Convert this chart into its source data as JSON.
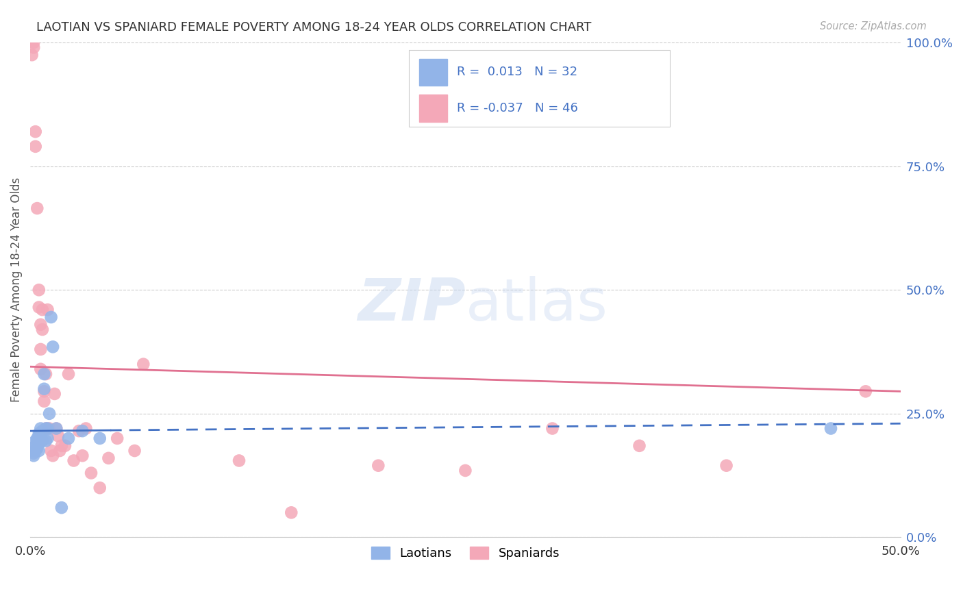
{
  "title": "LAOTIAN VS SPANIARD FEMALE POVERTY AMONG 18-24 YEAR OLDS CORRELATION CHART",
  "source": "Source: ZipAtlas.com",
  "ylabel": "Female Poverty Among 18-24 Year Olds",
  "ytick_labels": [
    "0.0%",
    "25.0%",
    "50.0%",
    "75.0%",
    "100.0%"
  ],
  "ytick_values": [
    0.0,
    0.25,
    0.5,
    0.75,
    1.0
  ],
  "xlim": [
    0.0,
    0.5
  ],
  "ylim": [
    0.0,
    1.0
  ],
  "laotian_R": 0.013,
  "laotian_N": 32,
  "spaniard_R": -0.037,
  "spaniard_N": 46,
  "legend_label_laotian": "Laotians",
  "legend_label_spaniard": "Spaniards",
  "laotian_color": "#92b4e8",
  "spaniard_color": "#f4a8b8",
  "laotian_line_color": "#4472c4",
  "spaniard_line_color": "#e07090",
  "background_color": "#ffffff",
  "laotian_x": [
    0.001,
    0.002,
    0.002,
    0.003,
    0.003,
    0.003,
    0.004,
    0.004,
    0.004,
    0.005,
    0.005,
    0.005,
    0.005,
    0.006,
    0.006,
    0.007,
    0.007,
    0.008,
    0.008,
    0.009,
    0.009,
    0.01,
    0.01,
    0.011,
    0.012,
    0.013,
    0.015,
    0.018,
    0.022,
    0.03,
    0.04,
    0.46
  ],
  "laotian_y": [
    0.175,
    0.17,
    0.165,
    0.195,
    0.185,
    0.175,
    0.2,
    0.195,
    0.18,
    0.21,
    0.205,
    0.19,
    0.175,
    0.22,
    0.2,
    0.215,
    0.195,
    0.33,
    0.3,
    0.22,
    0.195,
    0.22,
    0.2,
    0.25,
    0.445,
    0.385,
    0.22,
    0.06,
    0.2,
    0.215,
    0.2,
    0.22
  ],
  "spaniard_x": [
    0.001,
    0.002,
    0.002,
    0.003,
    0.003,
    0.004,
    0.005,
    0.005,
    0.006,
    0.006,
    0.006,
    0.007,
    0.007,
    0.008,
    0.008,
    0.009,
    0.009,
    0.01,
    0.011,
    0.012,
    0.013,
    0.014,
    0.015,
    0.016,
    0.017,
    0.018,
    0.02,
    0.022,
    0.025,
    0.028,
    0.03,
    0.032,
    0.035,
    0.04,
    0.045,
    0.05,
    0.06,
    0.065,
    0.12,
    0.15,
    0.2,
    0.25,
    0.3,
    0.35,
    0.4,
    0.48
  ],
  "spaniard_y": [
    0.975,
    1.0,
    0.99,
    0.82,
    0.79,
    0.665,
    0.5,
    0.465,
    0.43,
    0.38,
    0.34,
    0.46,
    0.42,
    0.295,
    0.275,
    0.33,
    0.22,
    0.46,
    0.22,
    0.175,
    0.165,
    0.29,
    0.22,
    0.205,
    0.175,
    0.185,
    0.185,
    0.33,
    0.155,
    0.215,
    0.165,
    0.22,
    0.13,
    0.1,
    0.16,
    0.2,
    0.175,
    0.35,
    0.155,
    0.05,
    0.145,
    0.135,
    0.22,
    0.185,
    0.145,
    0.295
  ],
  "laotian_trend_x": [
    0.0,
    0.046,
    0.46
  ],
  "laotian_trend_y_start": 0.215,
  "laotian_trend_y_mid": 0.22,
  "laotian_trend_y_end": 0.23,
  "spaniard_trend_y_start": 0.345,
  "spaniard_trend_y_end": 0.295
}
